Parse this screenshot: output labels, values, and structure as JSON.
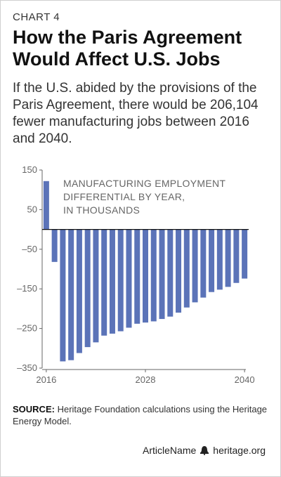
{
  "kicker": "CHART 4",
  "title": "How the Paris Agreement Would Affect U.S. Jobs",
  "subtitle": "If the U.S. abided by the provisions of the Paris Agreement, there would be 206,104 fewer manufacturing jobs between 2016 and 2040.",
  "source": {
    "label": "SOURCE:",
    "text": "Heritage Foundation calculations using the Heritage Energy Model."
  },
  "footer": {
    "article": "ArticleName",
    "site": "heritage.org",
    "icon": "liberty-bell-icon"
  },
  "colors": {
    "bar": "#5b73b8",
    "zero_line": "#111111",
    "axis": "#666666"
  },
  "chart_data": {
    "type": "bar",
    "annotation": [
      "MANUFACTURING EMPLOYMENT",
      "DIFFERENTIAL BY YEAR,",
      "IN THOUSANDS"
    ],
    "x": [
      2016,
      2017,
      2018,
      2019,
      2020,
      2021,
      2022,
      2023,
      2024,
      2025,
      2026,
      2027,
      2028,
      2029,
      2030,
      2031,
      2032,
      2033,
      2034,
      2035,
      2036,
      2037,
      2038,
      2039,
      2040
    ],
    "values": [
      122,
      -82,
      -333,
      -330,
      -312,
      -297,
      -285,
      -268,
      -263,
      -257,
      -248,
      -238,
      -235,
      -232,
      -226,
      -220,
      -210,
      -197,
      -184,
      -172,
      -158,
      -152,
      -145,
      -135,
      -124
    ],
    "ylim": [
      -350,
      150
    ],
    "yticks": [
      150,
      50,
      -50,
      -150,
      -250,
      -350
    ],
    "yticklabels": [
      "150",
      "50",
      "–50",
      "–150",
      "–250",
      "–350"
    ],
    "xticks": [
      2016,
      2028,
      2040
    ],
    "xticklabels": [
      "2016",
      "2028",
      "2040"
    ],
    "grid": false
  }
}
